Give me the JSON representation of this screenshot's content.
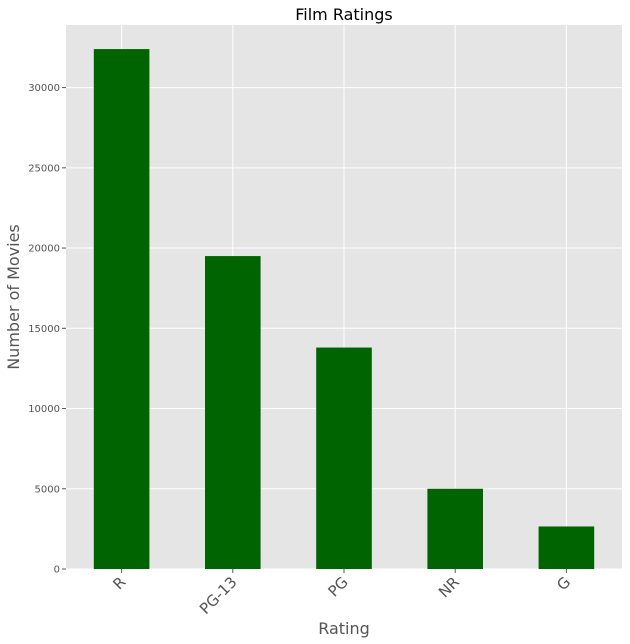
{
  "chart_data": {
    "type": "bar",
    "title": "Film Ratings",
    "xlabel": "Rating",
    "ylabel": "Number of Movies",
    "categories": [
      "R",
      "PG-13",
      "PG",
      "NR",
      "G"
    ],
    "values": [
      32400,
      19500,
      13800,
      5000,
      2650
    ],
    "ylim": [
      0,
      33900
    ],
    "yticks": [
      0,
      5000,
      10000,
      15000,
      20000,
      25000,
      30000
    ],
    "ytick_labels": [
      "0",
      "5000",
      "10000",
      "15000",
      "20000",
      "25000",
      "30000"
    ],
    "grid": true,
    "legend": "none",
    "style": "ggplot",
    "colors": {
      "bar": "#006400",
      "plot_background": "#e5e5e5",
      "grid": "#ffffff"
    }
  }
}
